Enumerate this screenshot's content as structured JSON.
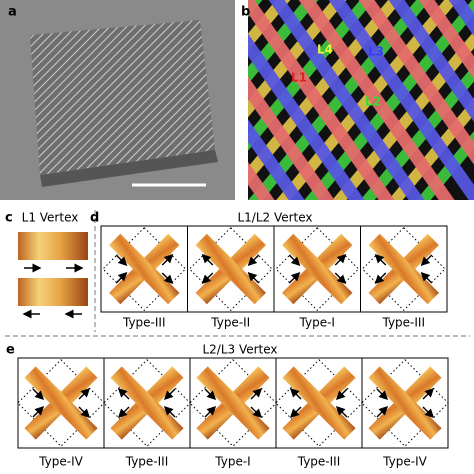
{
  "panels": {
    "a": {
      "label": "a"
    },
    "b": {
      "label": "b",
      "lattice_labels": [
        "L1",
        "L2",
        "L3",
        "L4"
      ]
    },
    "c": {
      "label": "c",
      "title": "L1 Vertex"
    },
    "d": {
      "label": "d",
      "title": "L1/L2 Vertex",
      "types": [
        "Type-III",
        "Type-II",
        "Type-I",
        "Type-III"
      ]
    },
    "e": {
      "label": "e",
      "title": "L2/L3 Vertex",
      "types": [
        "Type-IV",
        "Type-III",
        "Type-I",
        "Type-III",
        "Type-IV"
      ]
    }
  }
}
